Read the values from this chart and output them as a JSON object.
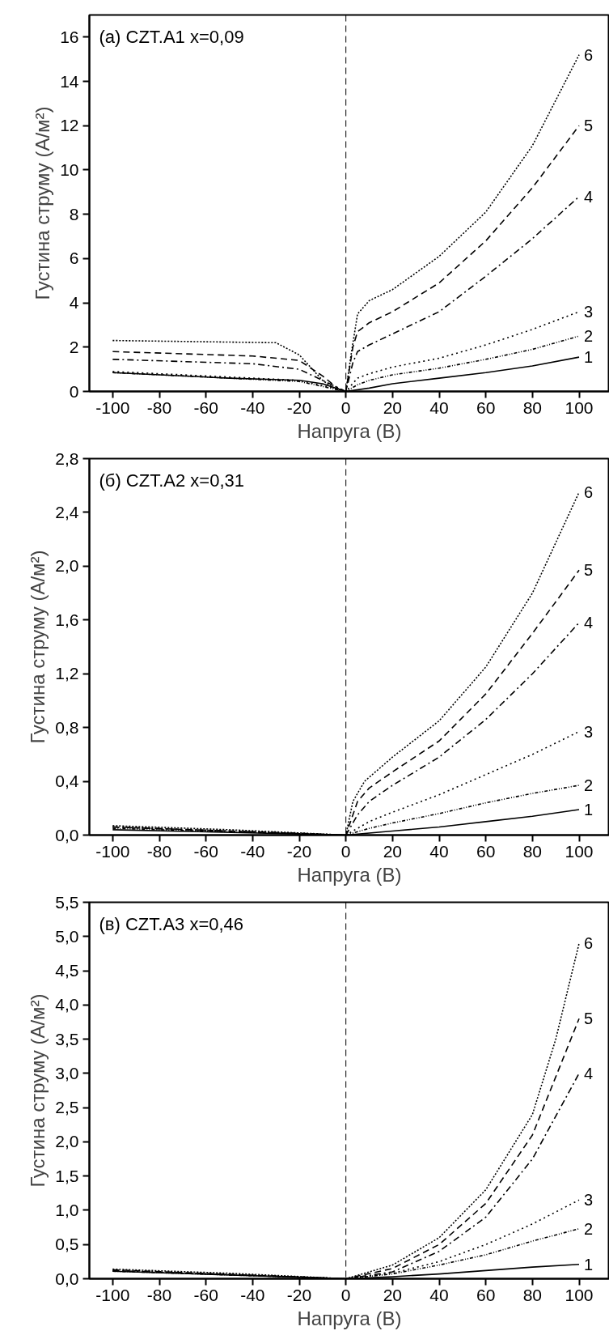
{
  "chart_data": [
    {
      "type": "line",
      "title": "(a) CZT.A1  x=0,09",
      "xlabel": "Напруга (В)",
      "ylabel": "Густина струму (А/м²)",
      "xlim": [
        -110,
        113
      ],
      "ylim": [
        0,
        17
      ],
      "xticks": [
        -100,
        -80,
        -60,
        -40,
        -20,
        0,
        20,
        40,
        60,
        80,
        100
      ],
      "yticks": [
        0,
        2,
        4,
        6,
        8,
        10,
        12,
        14,
        16
      ],
      "grid": false,
      "legend": false,
      "marker": "none",
      "ref_lines": [
        {
          "axis": "x",
          "value": 0,
          "line_style": "dashed",
          "color": "#000000"
        }
      ],
      "series": [
        {
          "name": "1",
          "color": "#000000",
          "line_style": "solid",
          "x": [
            -100,
            -50,
            -20,
            -10,
            0,
            10,
            20,
            40,
            60,
            80,
            100
          ],
          "values": [
            0.85,
            0.6,
            0.5,
            0.35,
            0,
            0.15,
            0.35,
            0.6,
            0.85,
            1.15,
            1.55
          ]
        },
        {
          "name": "2",
          "color": "#000000",
          "line_style": "dashdotdot",
          "x": [
            -100,
            -50,
            -20,
            0,
            5,
            10,
            20,
            40,
            60,
            80,
            100
          ],
          "values": [
            0.85,
            0.6,
            0.45,
            0,
            0.3,
            0.5,
            0.75,
            1.05,
            1.45,
            1.9,
            2.5
          ]
        },
        {
          "name": "3",
          "color": "#000000",
          "line_style": "dotted",
          "x": [
            -100,
            -50,
            -20,
            -5,
            0,
            5,
            10,
            20,
            40,
            60,
            80,
            100
          ],
          "values": [
            0.9,
            0.65,
            0.5,
            0.15,
            0,
            0.6,
            0.8,
            1.1,
            1.5,
            2.1,
            2.8,
            3.6
          ]
        },
        {
          "name": "4",
          "color": "#000000",
          "line_style": "dashdot",
          "x": [
            -100,
            -40,
            -20,
            -10,
            0,
            3,
            5,
            10,
            20,
            40,
            60,
            80,
            100
          ],
          "values": [
            1.45,
            1.25,
            1.0,
            0.5,
            0,
            1.3,
            1.8,
            2.1,
            2.6,
            3.6,
            5.2,
            6.9,
            8.8
          ]
        },
        {
          "name": "5",
          "color": "#000000",
          "line_style": "dashed",
          "x": [
            -100,
            -40,
            -20,
            -10,
            -3,
            0,
            3,
            5,
            10,
            20,
            40,
            60,
            80,
            100
          ],
          "values": [
            1.8,
            1.6,
            1.4,
            0.7,
            0.1,
            0,
            2.0,
            2.7,
            3.1,
            3.6,
            4.9,
            6.8,
            9.2,
            12.0
          ]
        },
        {
          "name": "6",
          "color": "#000000",
          "line_style": "shortdot",
          "x": [
            -100,
            -30,
            -20,
            -10,
            -3,
            0,
            2,
            5,
            10,
            20,
            40,
            60,
            80,
            100
          ],
          "values": [
            2.3,
            2.2,
            1.65,
            0.5,
            0,
            0,
            1.5,
            3.5,
            4.1,
            4.6,
            6.1,
            8.1,
            11.1,
            15.2
          ]
        }
      ]
    },
    {
      "type": "line",
      "title": "(б) CZT.A2  x=0,31",
      "xlabel": "Напруга (В)",
      "ylabel": "Густина струму (А/м²)",
      "xlim": [
        -110,
        113
      ],
      "ylim": [
        0,
        2.8
      ],
      "xticks": [
        -100,
        -80,
        -60,
        -40,
        -20,
        0,
        20,
        40,
        60,
        80,
        100
      ],
      "yticks": [
        {
          "value": 0,
          "label": "0,0"
        },
        {
          "value": 0.4,
          "label": "0,4"
        },
        {
          "value": 0.8,
          "label": "0,8"
        },
        {
          "value": 1.2,
          "label": "1,2"
        },
        {
          "value": 1.6,
          "label": "1,6"
        },
        {
          "value": 2.0,
          "label": "2,0"
        },
        {
          "value": 2.4,
          "label": "2,4"
        },
        {
          "value": 2.8,
          "label": "2,8"
        }
      ],
      "grid": false,
      "legend": false,
      "marker": "none",
      "ref_lines": [
        {
          "axis": "x",
          "value": 0,
          "line_style": "dashed",
          "color": "#000000"
        }
      ],
      "series": [
        {
          "name": "1",
          "color": "#000000",
          "line_style": "solid",
          "x": [
            -100,
            0,
            20,
            40,
            60,
            80,
            100
          ],
          "values": [
            0.04,
            0,
            0.03,
            0.06,
            0.1,
            0.14,
            0.19
          ]
        },
        {
          "name": "2",
          "color": "#000000",
          "line_style": "dashdotdot",
          "x": [
            -100,
            0,
            10,
            20,
            40,
            60,
            80,
            100
          ],
          "values": [
            0.05,
            0,
            0.05,
            0.09,
            0.16,
            0.24,
            0.31,
            0.37
          ]
        },
        {
          "name": "3",
          "color": "#000000",
          "line_style": "dotted",
          "x": [
            -100,
            0,
            10,
            20,
            40,
            60,
            80,
            100
          ],
          "values": [
            0.06,
            0,
            0.1,
            0.17,
            0.3,
            0.45,
            0.6,
            0.77
          ]
        },
        {
          "name": "4",
          "color": "#000000",
          "line_style": "dashdot",
          "x": [
            -100,
            0,
            5,
            10,
            20,
            40,
            60,
            80,
            100
          ],
          "values": [
            0.06,
            0,
            0.15,
            0.25,
            0.37,
            0.58,
            0.86,
            1.2,
            1.58
          ]
        },
        {
          "name": "5",
          "color": "#000000",
          "line_style": "dashed",
          "x": [
            -100,
            0,
            5,
            10,
            20,
            40,
            60,
            80,
            100
          ],
          "values": [
            0.06,
            0,
            0.25,
            0.35,
            0.47,
            0.7,
            1.05,
            1.5,
            1.97
          ]
        },
        {
          "name": "6",
          "color": "#000000",
          "line_style": "shortdot",
          "x": [
            -100,
            -50,
            0,
            3,
            8,
            20,
            40,
            60,
            80,
            100
          ],
          "values": [
            0.07,
            0.04,
            0,
            0.25,
            0.4,
            0.58,
            0.85,
            1.25,
            1.8,
            2.55
          ]
        }
      ]
    },
    {
      "type": "line",
      "title": "(в) CZT.A3  x=0,46",
      "xlabel": "Напруга (В)",
      "ylabel": "Густина струму (А/м²)",
      "xlim": [
        -110,
        113
      ],
      "ylim": [
        0,
        5.5
      ],
      "xticks": [
        -100,
        -80,
        -60,
        -40,
        -20,
        0,
        20,
        40,
        60,
        80,
        100
      ],
      "yticks": [
        {
          "value": 0,
          "label": "0,0"
        },
        {
          "value": 0.5,
          "label": "0,5"
        },
        {
          "value": 1.0,
          "label": "1,0"
        },
        {
          "value": 1.5,
          "label": "1,5"
        },
        {
          "value": 2.0,
          "label": "2,0"
        },
        {
          "value": 2.5,
          "label": "2,5"
        },
        {
          "value": 3.0,
          "label": "3,0"
        },
        {
          "value": 3.5,
          "label": "3,5"
        },
        {
          "value": 4.0,
          "label": "4,0"
        },
        {
          "value": 4.5,
          "label": "4,5"
        },
        {
          "value": 5.0,
          "label": "5,0"
        },
        {
          "value": 5.5,
          "label": "5,5"
        }
      ],
      "grid": false,
      "legend": false,
      "marker": "none",
      "ref_lines": [
        {
          "axis": "x",
          "value": 0,
          "line_style": "dashed",
          "color": "#000000"
        }
      ],
      "series": [
        {
          "name": "1",
          "color": "#000000",
          "line_style": "solid",
          "x": [
            -100,
            0,
            20,
            40,
            60,
            80,
            100
          ],
          "values": [
            0.11,
            0,
            0.03,
            0.07,
            0.12,
            0.17,
            0.21
          ]
        },
        {
          "name": "2",
          "color": "#000000",
          "line_style": "dashdotdot",
          "x": [
            -100,
            0,
            20,
            40,
            60,
            80,
            100
          ],
          "values": [
            0.11,
            0,
            0.07,
            0.2,
            0.35,
            0.55,
            0.73
          ]
        },
        {
          "name": "3",
          "color": "#000000",
          "line_style": "dotted",
          "x": [
            -100,
            0,
            20,
            40,
            60,
            80,
            100
          ],
          "values": [
            0.12,
            0,
            0.08,
            0.25,
            0.5,
            0.8,
            1.15
          ]
        },
        {
          "name": "4",
          "color": "#000000",
          "line_style": "dashdot",
          "x": [
            -100,
            0,
            20,
            40,
            60,
            80,
            100
          ],
          "values": [
            0.12,
            0,
            0.1,
            0.4,
            0.9,
            1.75,
            3.0
          ]
        },
        {
          "name": "5",
          "color": "#000000",
          "line_style": "dashed",
          "x": [
            -100,
            0,
            20,
            40,
            60,
            80,
            100
          ],
          "values": [
            0.13,
            0,
            0.15,
            0.5,
            1.1,
            2.1,
            3.8
          ]
        },
        {
          "name": "6",
          "color": "#000000",
          "line_style": "shortdot",
          "x": [
            -100,
            -50,
            0,
            20,
            40,
            60,
            80,
            90,
            100
          ],
          "values": [
            0.14,
            0.08,
            0,
            0.2,
            0.6,
            1.3,
            2.4,
            3.5,
            4.9
          ]
        }
      ]
    }
  ]
}
